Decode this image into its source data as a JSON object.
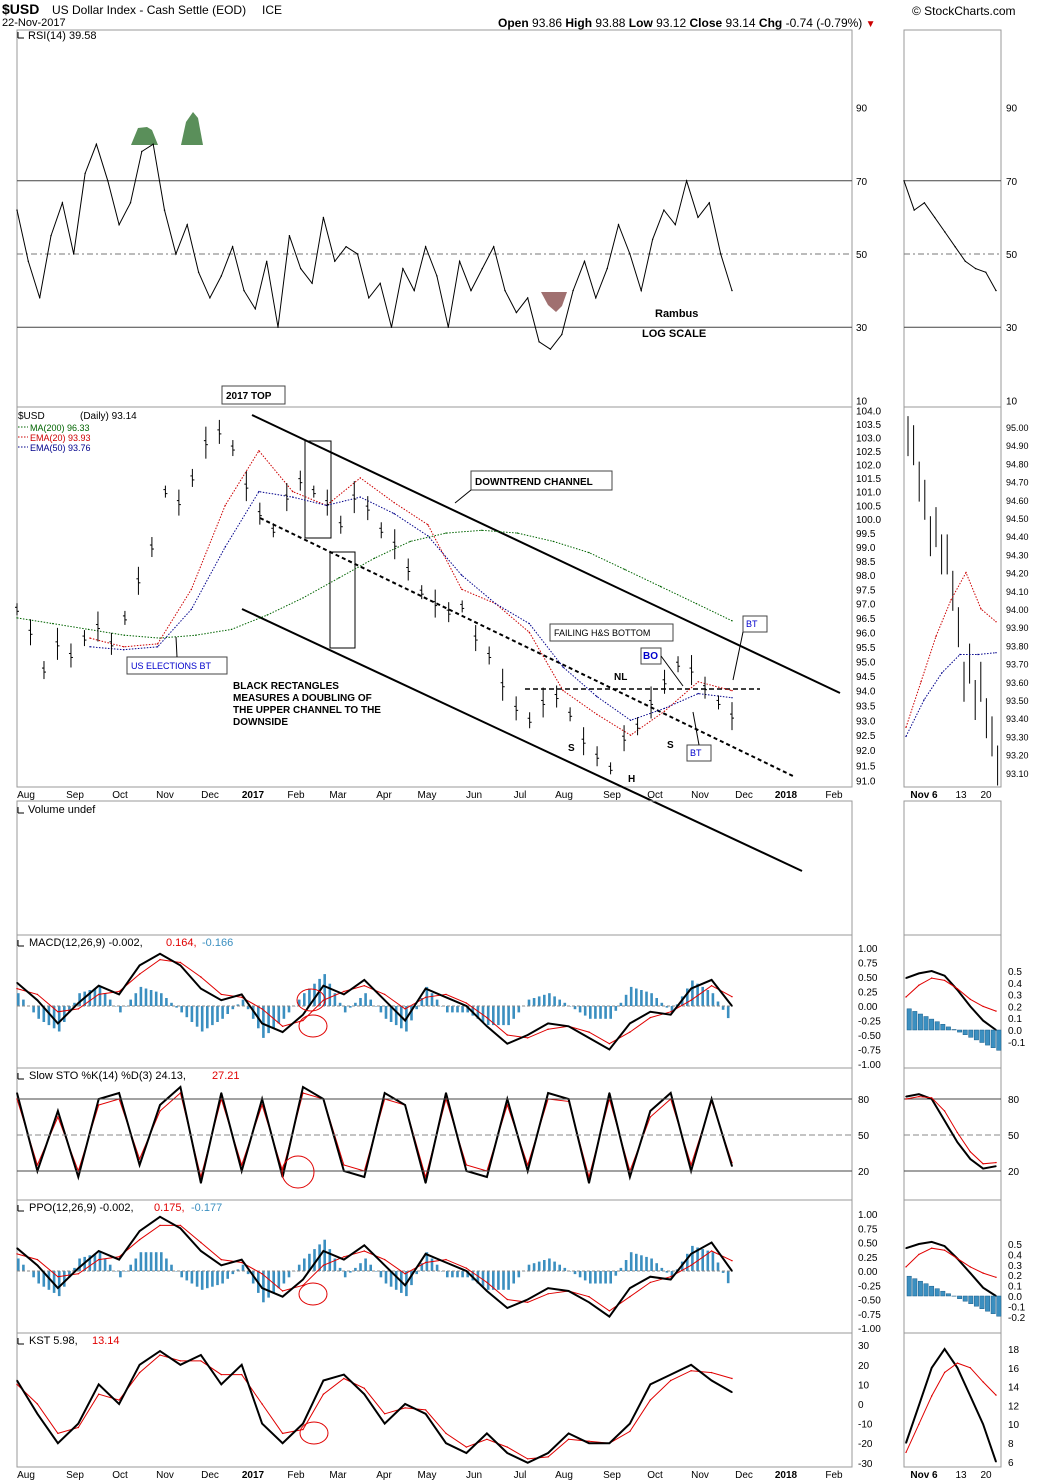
{
  "header": {
    "symbol": "$USD",
    "name": "US Dollar Index - Cash Settle (EOD)",
    "exchange": "ICE",
    "date": "22-Nov-2017",
    "open_label": "Open",
    "open": "93.86",
    "high_label": "High",
    "high": "93.88",
    "low_label": "Low",
    "low": "93.12",
    "close_label": "Close",
    "close": "93.14",
    "chg_label": "Chg",
    "chg": "-0.74 (-0.79%)",
    "copyright": "© StockCharts.com"
  },
  "colors": {
    "ma200": "#006400",
    "ema20": "#cc0000",
    "ema50": "#00008b",
    "hist": "#3b8fc0",
    "rsi_high": "#5a8f5a",
    "rsi_low": "#a07070",
    "signal": "#e00000",
    "annotation_blue": "#0000cc"
  },
  "annotations": {
    "rambus": "Rambus",
    "log_scale": "LOG SCALE",
    "top_2017": "2017 TOP",
    "downtrend_channel": "DOWNTREND CHANNEL",
    "failing_hs": "FAILING H&S BOTTOM",
    "us_elections_bt": "US ELECTIONS BT",
    "black_rect_1": "BLACK RECTANGLES",
    "black_rect_2": "MEASURES A DOUBLING OF",
    "black_rect_3": "THE UPPER CHANNEL TO THE",
    "black_rect_4": "DOWNSIDE",
    "bo": "BO",
    "bt": "BT",
    "nl": "NL",
    "s": "S",
    "h": "H"
  },
  "chart_data": [
    {
      "type": "line",
      "panel": "rsi",
      "legend": "RSI(14) 39.58",
      "ylim": [
        0,
        100
      ],
      "yticks": [
        10,
        30,
        50,
        70,
        90
      ],
      "series": [
        {
          "name": "RSI(14)",
          "values": [
            62,
            48,
            38,
            55,
            64,
            50,
            72,
            80,
            70,
            58,
            64,
            78,
            80,
            62,
            50,
            58,
            45,
            38,
            44,
            52,
            40,
            35,
            48,
            30,
            55,
            46,
            42,
            60,
            48,
            52,
            50,
            38,
            42,
            30,
            46,
            40,
            52,
            44,
            30,
            48,
            40,
            46,
            52,
            40,
            34,
            38,
            26,
            24,
            28,
            40,
            48,
            38,
            46,
            58,
            50,
            40,
            54,
            62,
            58,
            70,
            60,
            64,
            50,
            40
          ]
        }
      ]
    },
    {
      "type": "candlestick",
      "panel": "price",
      "legend": "$USD (Daily) 93.14",
      "scale": "log",
      "ylim": [
        90.8,
        104.0
      ],
      "yticks": [
        "91.0",
        "91.5",
        "92.0",
        "92.5",
        "93.0",
        "93.5",
        "94.0",
        "94.5",
        "95.0",
        "95.5",
        "96.0",
        "96.5",
        "97.0",
        "97.5",
        "98.0",
        "98.5",
        "99.0",
        "99.5",
        "100.0",
        "100.5",
        "101.0",
        "101.5",
        "102.0",
        "102.5",
        "103.0",
        "103.5",
        "104.0"
      ],
      "xticks": [
        "Aug",
        "Sep",
        "Oct",
        "Nov",
        "Dec",
        "2017",
        "Feb",
        "Mar",
        "Apr",
        "May",
        "Jun",
        "Jul",
        "Aug",
        "Sep",
        "Oct",
        "Nov",
        "Dec",
        "2018",
        "Feb"
      ],
      "series": [
        {
          "name": "MA(200) 96.33",
          "values": [
            96.5,
            96.3,
            96.1,
            95.9,
            95.8,
            95.9,
            96.1,
            96.6,
            97.2,
            97.9,
            98.6,
            99.2,
            99.5,
            99.6,
            99.5,
            99.2,
            98.8,
            98.2,
            97.6,
            97.0,
            96.4
          ]
        },
        {
          "name": "EMA(20) 93.93",
          "values": [
            95.8,
            95.5,
            95.6,
            97.5,
            100.5,
            102.5,
            101.0,
            100.5,
            101.5,
            100.6,
            99.8,
            97.5,
            97.0,
            96.0,
            94.0,
            93.2,
            92.5,
            93.3,
            94.3,
            94.0
          ]
        },
        {
          "name": "EMA(50) 93.76",
          "values": [
            95.5,
            95.4,
            95.5,
            96.8,
            99.0,
            101.0,
            100.8,
            100.5,
            100.8,
            100.2,
            99.4,
            98.0,
            97.0,
            96.3,
            94.8,
            93.8,
            93.0,
            93.4,
            93.9,
            93.76
          ]
        },
        {
          "name": "$USD",
          "values": [
            96.8,
            96.0,
            94.7,
            95.6,
            95.2,
            95.8,
            96.2,
            95.6,
            96.5,
            97.8,
            99.0,
            101.0,
            100.6,
            101.5,
            102.8,
            103.2,
            102.6,
            101.2,
            100.2,
            99.6,
            100.8,
            101.4,
            101.0,
            100.6,
            99.8,
            100.8,
            100.4,
            99.6,
            99.1,
            98.2,
            97.4,
            97.0,
            96.7,
            96.9,
            95.8,
            95.2,
            94.2,
            93.4,
            93.0,
            93.6,
            93.8,
            93.2,
            92.3,
            91.8,
            91.4,
            92.4,
            92.8,
            93.6,
            94.3,
            94.9,
            94.7,
            94.1,
            93.6,
            93.14
          ]
        }
      ]
    },
    {
      "type": "bar",
      "panel": "volume",
      "legend": "Volume undef",
      "values": []
    },
    {
      "type": "line",
      "panel": "macd",
      "legend_prefix": "MACD(12,26,9) -0.002,",
      "legend_signal": "0.164,",
      "legend_hist": "-0.166",
      "ylim": [
        -1.0,
        1.0
      ],
      "yticks": [
        "1.00",
        "0.75",
        "0.50",
        "0.25",
        "0.00",
        "-0.25",
        "-0.50",
        "-0.75",
        "-1.00"
      ],
      "series": [
        {
          "name": "MACD",
          "values": [
            0.4,
            0.1,
            -0.3,
            0.05,
            0.35,
            0.2,
            0.7,
            0.9,
            0.7,
            0.3,
            0.1,
            0.2,
            -0.3,
            -0.45,
            -0.15,
            0.35,
            0.2,
            0.45,
            0.1,
            -0.25,
            0.3,
            0.15,
            0.0,
            -0.35,
            -0.65,
            -0.5,
            -0.3,
            -0.35,
            -0.55,
            -0.75,
            -0.3,
            -0.1,
            -0.15,
            0.3,
            0.45,
            0.0
          ]
        },
        {
          "name": "Signal",
          "values": [
            0.3,
            0.2,
            -0.1,
            -0.05,
            0.2,
            0.25,
            0.55,
            0.8,
            0.75,
            0.5,
            0.2,
            0.15,
            -0.05,
            -0.35,
            -0.25,
            0.1,
            0.25,
            0.35,
            0.2,
            -0.05,
            0.15,
            0.2,
            0.05,
            -0.2,
            -0.5,
            -0.55,
            -0.4,
            -0.35,
            -0.45,
            -0.65,
            -0.45,
            -0.2,
            -0.1,
            0.1,
            0.35,
            0.16
          ]
        }
      ]
    },
    {
      "type": "line",
      "panel": "sto",
      "legend_prefix": "Slow STO %K(14) %D(3) 24.13,",
      "legend_signal": "27.21",
      "ylim": [
        0,
        100
      ],
      "yticks": [
        "20",
        "50",
        "80"
      ],
      "series": [
        {
          "name": "%K",
          "values": [
            85,
            20,
            70,
            15,
            80,
            85,
            25,
            75,
            90,
            10,
            85,
            20,
            80,
            15,
            90,
            80,
            20,
            15,
            85,
            75,
            10,
            85,
            20,
            15,
            80,
            20,
            85,
            80,
            10,
            85,
            15,
            70,
            85,
            20,
            80,
            24
          ]
        },
        {
          "name": "%D",
          "values": [
            80,
            25,
            65,
            20,
            75,
            80,
            30,
            70,
            85,
            15,
            80,
            25,
            75,
            20,
            85,
            80,
            25,
            20,
            80,
            75,
            15,
            80,
            25,
            20,
            75,
            25,
            80,
            78,
            15,
            80,
            20,
            65,
            80,
            25,
            78,
            27
          ]
        }
      ]
    },
    {
      "type": "line",
      "panel": "ppo",
      "legend_prefix": "PPO(12,26,9) -0.002,",
      "legend_signal": "0.175,",
      "legend_hist": "-0.177",
      "ylim": [
        -1.0,
        1.0
      ],
      "yticks": [
        "1.00",
        "0.75",
        "0.50",
        "0.25",
        "0.00",
        "-0.25",
        "-0.50",
        "-0.75",
        "-1.00"
      ],
      "series": [
        {
          "name": "PPO",
          "values": [
            0.4,
            0.1,
            -0.3,
            0.05,
            0.35,
            0.2,
            0.7,
            0.95,
            0.75,
            0.35,
            0.1,
            0.2,
            -0.3,
            -0.45,
            -0.15,
            0.35,
            0.2,
            0.45,
            0.1,
            -0.25,
            0.3,
            0.15,
            0.0,
            -0.35,
            -0.65,
            -0.5,
            -0.3,
            -0.35,
            -0.55,
            -0.8,
            -0.3,
            -0.1,
            -0.15,
            0.3,
            0.5,
            0.0
          ]
        },
        {
          "name": "Signal",
          "values": [
            0.3,
            0.2,
            -0.1,
            -0.05,
            0.2,
            0.25,
            0.55,
            0.8,
            0.8,
            0.5,
            0.2,
            0.15,
            -0.05,
            -0.35,
            -0.25,
            0.1,
            0.25,
            0.35,
            0.2,
            -0.05,
            0.15,
            0.2,
            0.05,
            -0.2,
            -0.5,
            -0.55,
            -0.4,
            -0.35,
            -0.45,
            -0.7,
            -0.45,
            -0.2,
            -0.1,
            0.1,
            0.35,
            0.18
          ]
        }
      ]
    },
    {
      "type": "line",
      "panel": "kst",
      "legend_prefix": "KST 5.98,",
      "legend_signal": "13.14",
      "ylim": [
        -30,
        30
      ],
      "yticks": [
        "30",
        "20",
        "10",
        "0",
        "-10",
        "-20",
        "-30"
      ],
      "series": [
        {
          "name": "KST",
          "values": [
            12,
            -5,
            -20,
            -10,
            10,
            0,
            20,
            27,
            20,
            25,
            10,
            20,
            -10,
            -20,
            -10,
            12,
            15,
            5,
            -10,
            0,
            -5,
            -20,
            -25,
            -15,
            -25,
            -30,
            -25,
            -15,
            -20,
            -20,
            -10,
            10,
            15,
            20,
            12,
            6
          ]
        },
        {
          "name": "Signal",
          "values": [
            10,
            0,
            -15,
            -12,
            5,
            2,
            16,
            25,
            22,
            22,
            15,
            15,
            0,
            -15,
            -13,
            5,
            13,
            8,
            -5,
            -2,
            -3,
            -15,
            -22,
            -18,
            -22,
            -28,
            -27,
            -18,
            -19,
            -20,
            -14,
            2,
            12,
            17,
            16,
            13
          ]
        }
      ]
    },
    {
      "type": "line",
      "panel": "zoom",
      "xticks": [
        "Nov 6",
        "13",
        "20"
      ],
      "rsi_yticks": [
        "90",
        "70",
        "50",
        "30",
        "10"
      ],
      "price_yticks": [
        "95.00",
        "94.90",
        "94.80",
        "94.70",
        "94.60",
        "94.50",
        "94.40",
        "94.30",
        "94.20",
        "94.10",
        "94.00",
        "93.90",
        "93.80",
        "93.70",
        "93.60",
        "93.50",
        "93.40",
        "93.30",
        "93.20",
        "93.10"
      ],
      "macd_yticks": [
        "0.5",
        "0.4",
        "0.3",
        "0.2",
        "0.1",
        "0.0",
        "-0.1"
      ],
      "sto_yticks": [
        "80",
        "50",
        "20"
      ],
      "ppo_yticks": [
        "0.5",
        "0.4",
        "0.3",
        "0.2",
        "0.1",
        "0.0",
        "-0.1",
        "-0.2"
      ],
      "kst_yticks": [
        "18",
        "16",
        "14",
        "12",
        "10",
        "8",
        "6"
      ]
    }
  ]
}
